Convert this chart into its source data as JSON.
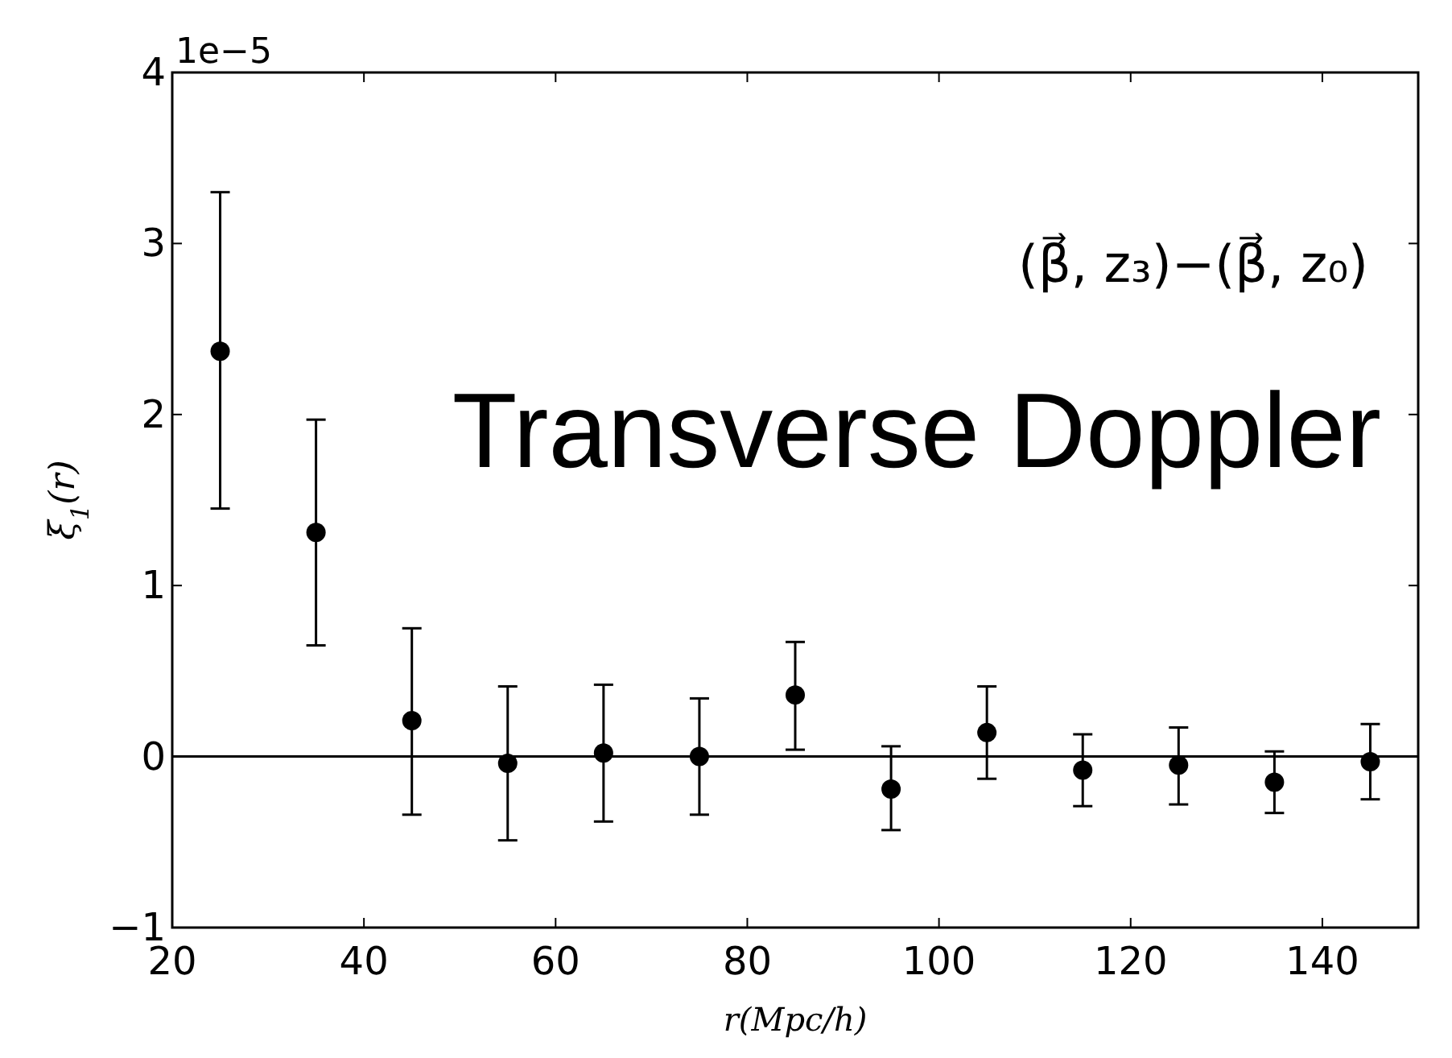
{
  "chart_data": {
    "type": "scatter",
    "xlabel": "r(Mpc/h)",
    "ylabel": "ξ$_{1}$(r)",
    "annotations": [
      "1e−5",
      "(β⃗, z₃)−(β⃗, z₀)",
      "Transverse Doppler"
    ],
    "x": [
      25,
      35,
      45,
      55,
      65,
      75,
      85,
      95,
      105,
      115,
      125,
      135,
      145
    ],
    "series": [
      {
        "color": "#000000",
        "values": [
          2.37,
          1.31,
          0.21,
          -0.04,
          0.02,
          0.0,
          0.36,
          -0.19,
          0.14,
          -0.08,
          -0.05,
          -0.15,
          -0.03
        ],
        "errors": [
          [
            1.45,
            3.3
          ],
          [
            0.65,
            1.97
          ],
          [
            -0.34,
            0.75
          ],
          [
            -0.49,
            0.41
          ],
          [
            -0.38,
            0.42
          ],
          [
            -0.34,
            0.34
          ],
          [
            0.04,
            0.67
          ],
          [
            -0.43,
            0.06
          ],
          [
            -0.13,
            0.41
          ],
          [
            -0.29,
            0.13
          ],
          [
            -0.28,
            0.17
          ],
          [
            -0.33,
            0.03
          ],
          [
            -0.25,
            0.19
          ]
        ]
      }
    ],
    "xlim": [
      20,
      150
    ],
    "xticks": [
      20,
      40,
      60,
      80,
      100,
      120,
      140
    ],
    "ylim": [
      -1,
      4
    ],
    "yticks": [
      {
        "value": -1,
        "label": "−1"
      },
      0,
      1,
      2,
      3,
      4
    ],
    "ref_lines": [
      {
        "axis": "y",
        "value": 0,
        "color": "#000000"
      }
    ],
    "marker": "circle",
    "grid": false
  }
}
